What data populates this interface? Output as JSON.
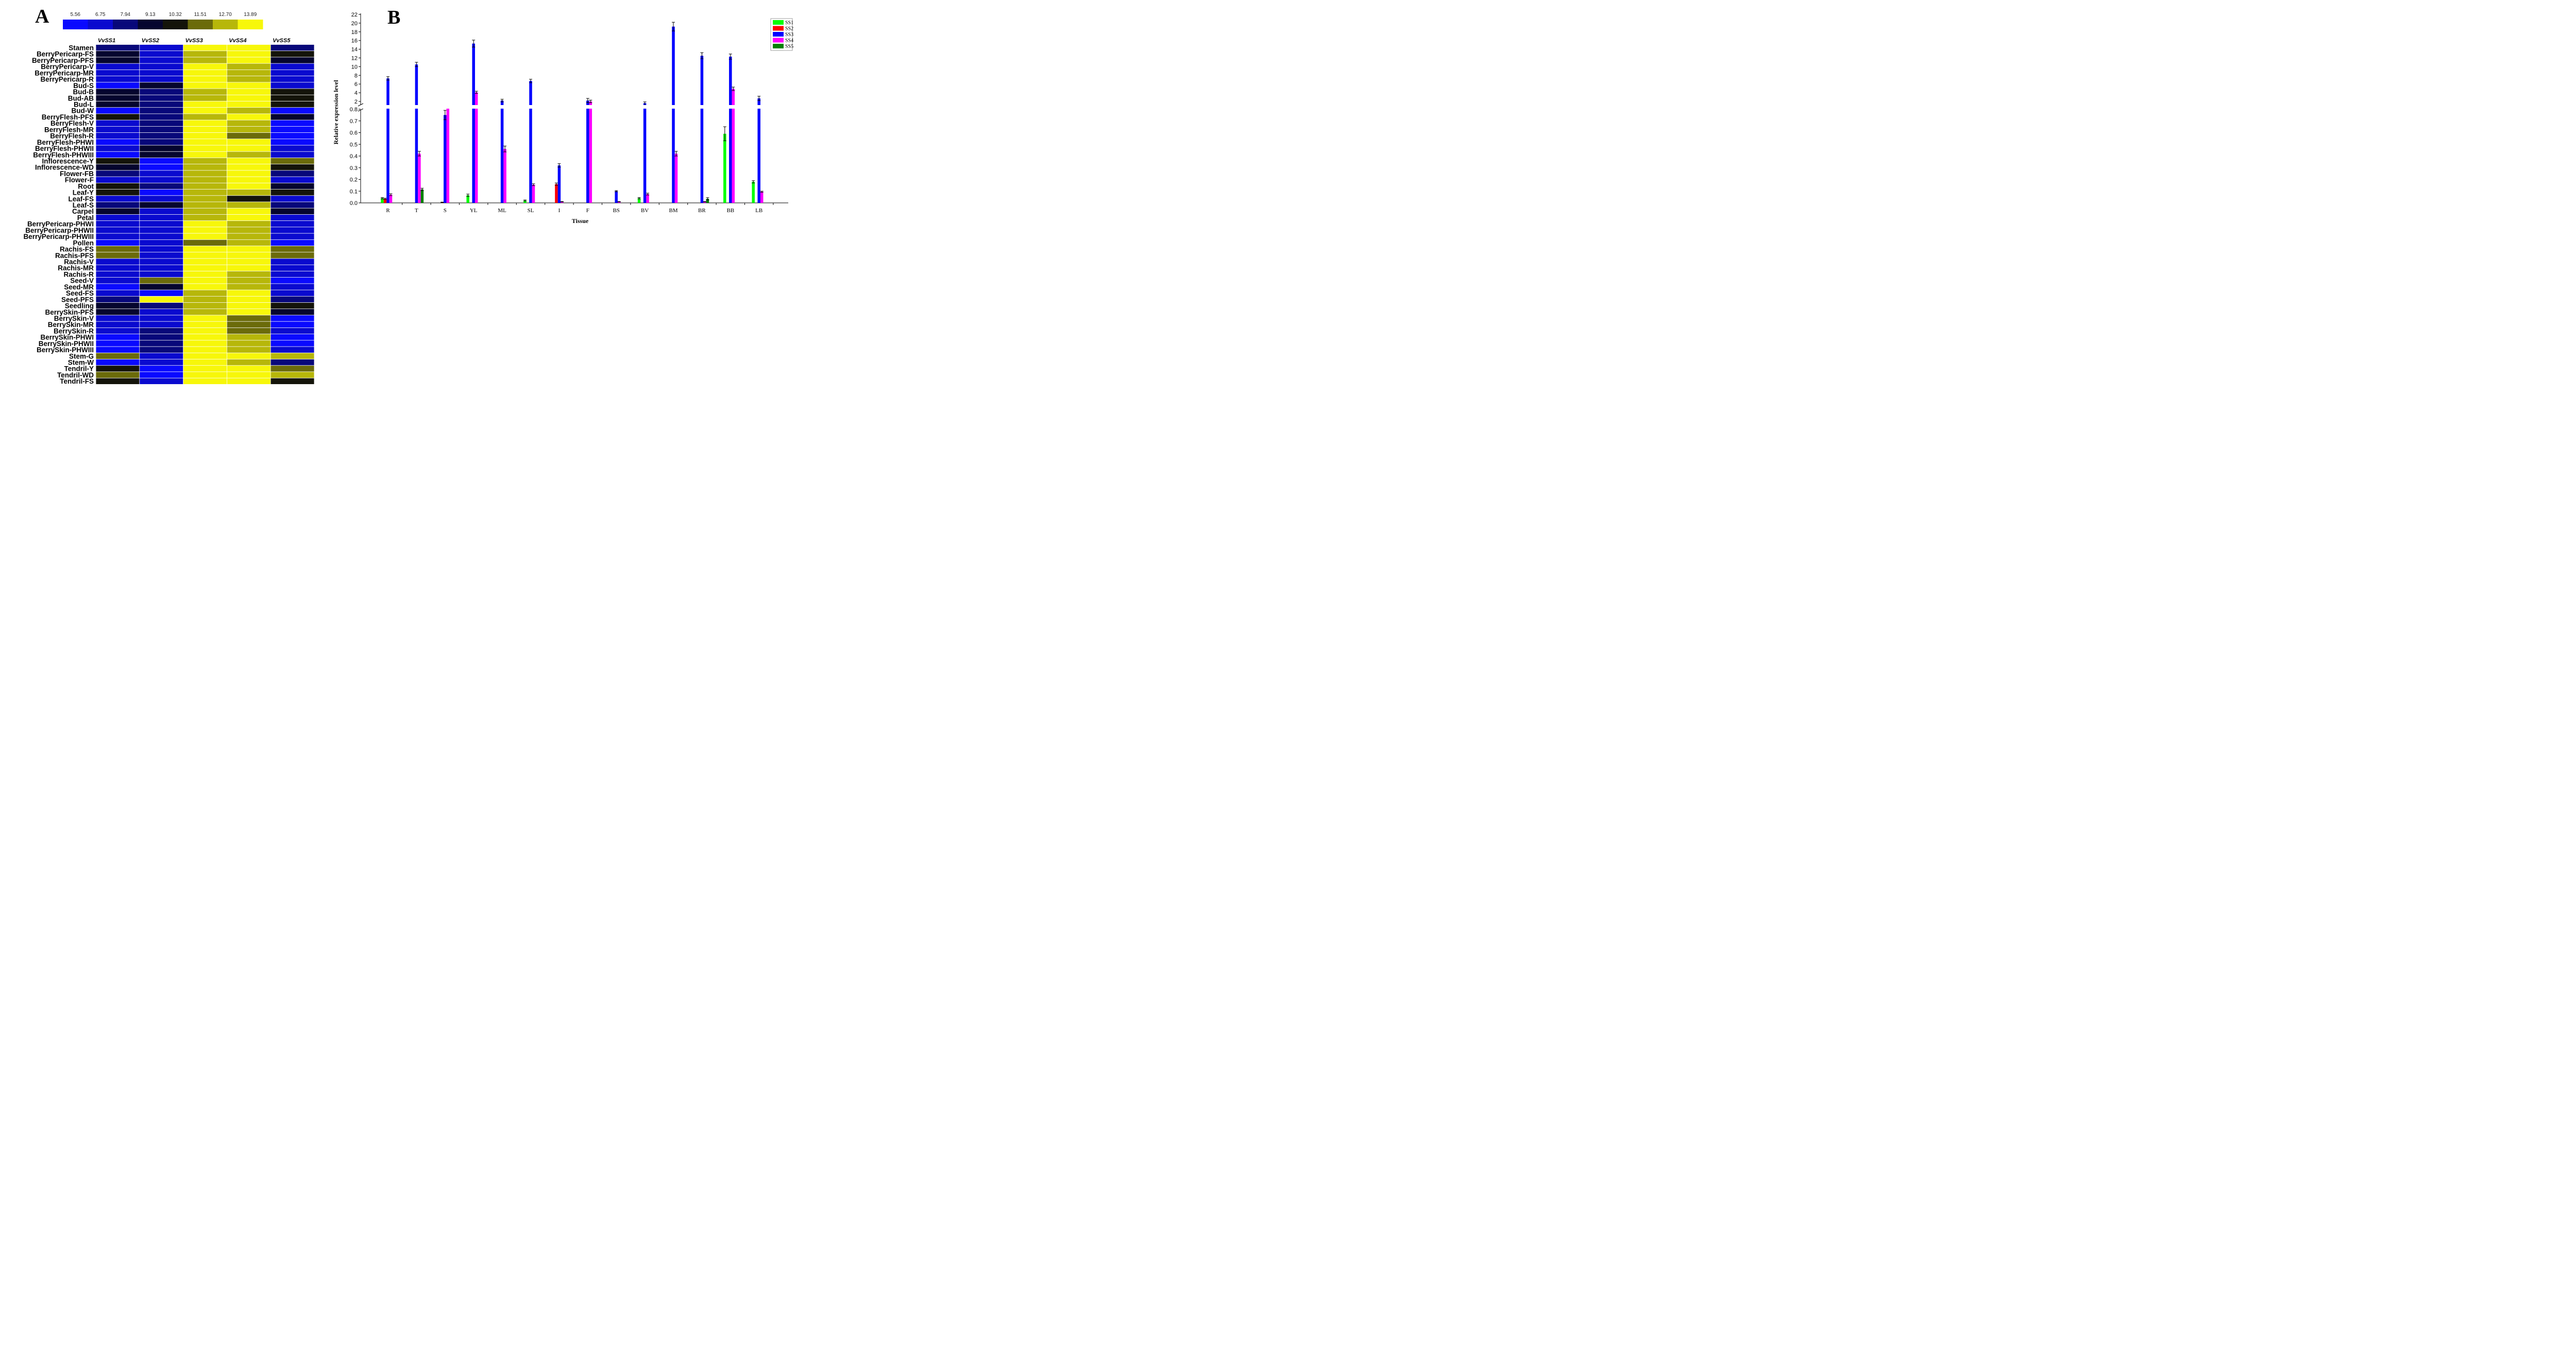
{
  "panel_a": {
    "label": "A"
  },
  "panel_b": {
    "label": "B"
  },
  "chart_data": [
    {
      "type": "heatmap",
      "panel": "A",
      "color_scale": {
        "ticks": [
          "5.56",
          "6.75",
          "7.94",
          "9.13",
          "10.32",
          "11.51",
          "12.70",
          "13.89"
        ],
        "colors": [
          "#0a0aff",
          "#0a0acf",
          "#08087a",
          "#05052e",
          "#14140a",
          "#6b6b0a",
          "#b7b70a",
          "#f7f70a"
        ]
      },
      "columns": [
        "VvSS1",
        "VvSS2",
        "VvSS3",
        "VvSS4",
        "VvSS5"
      ],
      "rows": [
        "Stamen",
        "BerryPericarp-FS",
        "BerryPericarp-PFS",
        "BerryPericarp-V",
        "BerryPericarp-MR",
        "BerryPericarp-R",
        "Bud-S",
        "Bud-B",
        "Bud-AB",
        "Bud-L",
        "Bud-W",
        "BerryFlesh-PFS",
        "BerryFlesh-V",
        "BerryFlesh-MR",
        "BerryFlesh-R",
        "BerryFlesh-PHWI",
        "BerryFlesh-PHWII",
        "BerryFlesh-PHWIII",
        "Inflorescence-Y",
        "Inflorescence-WD",
        "Flower-FB",
        "Flower-F",
        "Root",
        "Leaf-Y",
        "Leaf-FS",
        "Leaf-S",
        "Carpel",
        "Petal",
        "BerryPericarp-PHWI",
        "BerryPericarp-PHWII",
        "BerryPericarp-PHWIII",
        "Pollen",
        "Rachis-FS",
        "Rachis-PFS",
        "Rachis-V",
        "Rachis-MR",
        "Rachis-R",
        "Seed-V",
        "Seed-MR",
        "Seed-FS",
        "Seed-PFS",
        "Seedling",
        "BerrySkin-PFS",
        "BerrySkin-V",
        "BerrySkin-MR",
        "BerrySkin-R",
        "BerrySkin-PHWI",
        "BerrySkin-PHWII",
        "BerrySkin-PHWIII",
        "Stem-G",
        "Stem-W",
        "Tendril-Y",
        "Tendril-WD",
        "Tendril-FS"
      ],
      "values": [
        [
          2,
          1,
          7,
          7,
          2
        ],
        [
          3,
          1,
          6,
          7,
          4
        ],
        [
          3,
          1,
          6,
          7,
          3
        ],
        [
          1,
          1,
          7,
          6,
          1
        ],
        [
          1,
          1,
          7,
          6,
          1
        ],
        [
          1,
          1,
          7,
          6,
          1
        ],
        [
          0,
          3,
          7,
          7,
          1
        ],
        [
          3,
          2,
          6,
          7,
          4
        ],
        [
          3,
          2,
          6,
          7,
          4
        ],
        [
          3,
          2,
          7,
          7,
          4
        ],
        [
          0,
          2,
          7,
          6,
          0
        ],
        [
          4,
          2,
          6,
          7,
          3
        ],
        [
          1,
          2,
          7,
          6,
          0
        ],
        [
          1,
          2,
          7,
          6,
          0
        ],
        [
          1,
          2,
          7,
          5,
          0
        ],
        [
          0,
          2,
          7,
          7,
          0
        ],
        [
          1,
          3,
          7,
          7,
          1
        ],
        [
          0,
          3,
          7,
          6,
          1
        ],
        [
          4,
          0,
          6,
          7,
          5
        ],
        [
          3,
          0,
          6,
          7,
          4
        ],
        [
          2,
          1,
          6,
          7,
          2
        ],
        [
          1,
          1,
          6,
          7,
          1
        ],
        [
          4,
          2,
          6,
          7,
          3
        ],
        [
          4,
          0,
          6,
          6,
          4
        ],
        [
          1,
          1,
          6,
          4,
          1
        ],
        [
          2,
          3,
          6,
          6,
          2
        ],
        [
          3,
          1,
          6,
          7,
          3
        ],
        [
          1,
          1,
          6,
          7,
          1
        ],
        [
          1,
          1,
          7,
          6,
          1
        ],
        [
          1,
          1,
          7,
          6,
          1
        ],
        [
          1,
          1,
          7,
          6,
          1
        ],
        [
          0,
          1,
          5,
          6,
          0
        ],
        [
          5,
          1,
          7,
          7,
          5
        ],
        [
          5,
          1,
          7,
          7,
          5
        ],
        [
          1,
          1,
          7,
          7,
          1
        ],
        [
          1,
          1,
          7,
          7,
          1
        ],
        [
          1,
          1,
          7,
          6,
          1
        ],
        [
          1,
          5,
          7,
          6,
          0
        ],
        [
          0,
          3,
          7,
          6,
          1
        ],
        [
          1,
          0,
          6,
          7,
          1
        ],
        [
          2,
          7,
          6,
          7,
          2
        ],
        [
          3,
          2,
          6,
          7,
          4
        ],
        [
          3,
          1,
          6,
          7,
          3
        ],
        [
          1,
          1,
          7,
          5,
          0
        ],
        [
          1,
          1,
          7,
          5,
          0
        ],
        [
          1,
          2,
          7,
          5,
          1
        ],
        [
          0,
          2,
          7,
          6,
          0
        ],
        [
          0,
          2,
          7,
          6,
          0
        ],
        [
          0,
          2,
          7,
          6,
          1
        ],
        [
          5,
          1,
          7,
          7,
          6
        ],
        [
          0,
          1,
          7,
          6,
          2
        ],
        [
          4,
          0,
          7,
          7,
          5
        ],
        [
          5,
          0,
          7,
          7,
          6
        ],
        [
          4,
          1,
          7,
          7,
          4
        ]
      ]
    },
    {
      "type": "bar",
      "panel": "B",
      "categories": [
        "R",
        "T",
        "S",
        "YL",
        "ML",
        "SL",
        "I",
        "F",
        "BS",
        "BV",
        "BM",
        "BR",
        "BB",
        "LB"
      ],
      "series": [
        {
          "name": "SS1",
          "color": "#00ff00",
          "values": [
            0.04,
            0,
            0,
            0.065,
            0,
            0.02,
            0,
            0,
            0,
            0.04,
            0,
            0,
            0.59,
            0.18
          ],
          "errors": [
            0.006,
            0,
            0,
            0.01,
            0,
            0.005,
            0,
            0,
            0,
            0.006,
            0,
            0,
            0.06,
            0.01
          ]
        },
        {
          "name": "SS2",
          "color": "#ff0000",
          "values": [
            0.035,
            0,
            0.005,
            0,
            0,
            0,
            0.16,
            0,
            0,
            0,
            0,
            0,
            0,
            0
          ],
          "errors": [
            0.005,
            0,
            0.002,
            0,
            0,
            0,
            0.01,
            0,
            0,
            0,
            0,
            0,
            0,
            0
          ]
        },
        {
          "name": "SS3",
          "color": "#0000ff",
          "values": [
            7.3,
            10.5,
            0.75,
            15.3,
            2.2,
            6.7,
            0.32,
            2.2,
            0.1,
            1.6,
            19.2,
            12.5,
            12.3,
            2.7
          ],
          "errors": [
            0.4,
            0.5,
            0.04,
            0.8,
            0.3,
            0.4,
            0.015,
            0.5,
            0.005,
            0.3,
            1.0,
            0.7,
            0.6,
            0.5
          ]
        },
        {
          "name": "SS4",
          "color": "#ff00ff",
          "values": [
            0.07,
            0.42,
            1.1,
            4.1,
            0.46,
            0.155,
            0.01,
            2.0,
            0.01,
            0.075,
            0.42,
            0.01,
            4.9,
            0.095
          ]
        },
        {
          "name": "SS5",
          "color": "#008000",
          "values": [
            0,
            0.115,
            0,
            0,
            0,
            0,
            0,
            0,
            0,
            0,
            0,
            0.035,
            0,
            0
          ],
          "errors": [
            0,
            0.01,
            0,
            0,
            0,
            0,
            0,
            0,
            0,
            0,
            0,
            0.01,
            0,
            0
          ]
        }
      ],
      "ss4_errors": [
        0.008,
        0.02,
        0.1,
        0.25,
        0.025,
        0.008,
        0.002,
        0.3,
        0.002,
        0.008,
        0.02,
        0.002,
        0.4,
        0.005
      ],
      "xlabel": "Tissue",
      "ylabel": "Relative expression level",
      "y_break": true,
      "y_lower_ticks": [
        "0.0",
        "0.1",
        "0.2",
        "0.3",
        "0.4",
        "0.5",
        "0.6",
        "0.7",
        "0.8"
      ],
      "y_upper_ticks": [
        "2",
        "4",
        "6",
        "8",
        "10",
        "12",
        "14",
        "16",
        "18",
        "20",
        "22"
      ],
      "legend_position": "top-right"
    }
  ]
}
